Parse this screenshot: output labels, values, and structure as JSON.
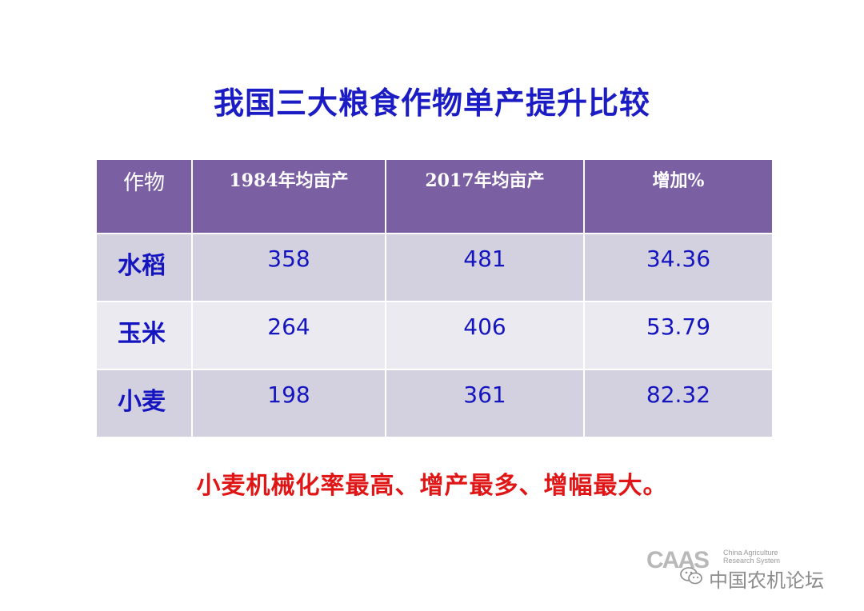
{
  "title": "我国三大粮食作物单产提升比较",
  "table": {
    "headers": [
      "作物",
      "1984年均亩产",
      "2017年均亩产",
      "增加%"
    ],
    "rows": [
      {
        "crop": "水稻",
        "y1984": "358",
        "y2017": "481",
        "increase": "34.36"
      },
      {
        "crop": "玉米",
        "y1984": "264",
        "y2017": "406",
        "increase": "53.79"
      },
      {
        "crop": "小麦",
        "y1984": "198",
        "y2017": "361",
        "increase": "82.32"
      }
    ]
  },
  "conclusion": "小麦机械化率最高、增产最多、增幅最大。",
  "watermark": {
    "logo_text": "CAAS",
    "logo_sub": "China Agriculture Research System",
    "icon": "wechat-icon",
    "forum_name": "中国农机论坛"
  },
  "colors": {
    "title": "#1c1cc4",
    "header_bg": "#7a5fa3",
    "row_dark": "#d3d0e0",
    "row_light": "#ebeaf1",
    "cell_text": "#1515c0",
    "conclusion": "#e01616"
  }
}
